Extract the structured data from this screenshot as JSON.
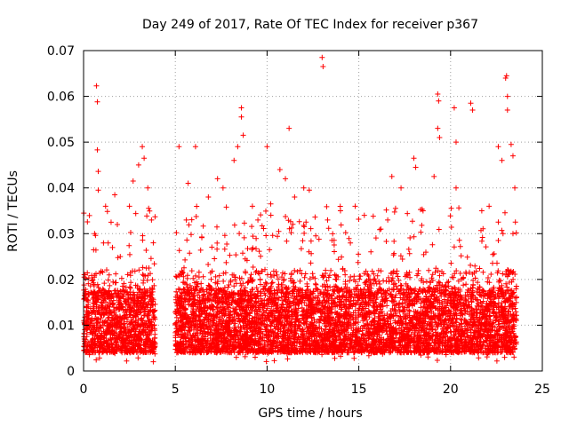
{
  "chart_data": {
    "type": "scatter",
    "title": "Day 249 of 2017, Rate Of TEC Index for receiver p367",
    "xlabel": "GPS time / hours",
    "ylabel": "ROTI / TECUs",
    "xlim": [
      0,
      25
    ],
    "ylim": [
      0,
      0.07
    ],
    "xticks": [
      0,
      5,
      10,
      15,
      20,
      25
    ],
    "yticks": [
      0,
      0.01,
      0.02,
      0.03,
      0.04,
      0.05,
      0.06,
      0.07
    ],
    "ytick_labels": [
      "0",
      "0.01",
      "0.02",
      "0.03",
      "0.04",
      "0.05",
      "0.06",
      "0.07"
    ],
    "xtick_labels": [
      "0",
      "5",
      "10",
      "15",
      "20",
      "25"
    ],
    "grid": true,
    "marker": "plus",
    "color": "#ff0000",
    "coverage": {
      "segments": [
        [
          0,
          3.9
        ],
        [
          5.0,
          23.6
        ]
      ],
      "typical_range": [
        0.004,
        0.018
      ]
    },
    "points": [
      [
        0.7,
        0.0623
      ],
      [
        0.75,
        0.0588
      ],
      [
        0.75,
        0.0483
      ],
      [
        0.8,
        0.0436
      ],
      [
        0.8,
        0.0395
      ],
      [
        0.6,
        0.03
      ],
      [
        1.2,
        0.036
      ],
      [
        1.5,
        0.0325
      ],
      [
        1.7,
        0.0385
      ],
      [
        2.0,
        0.025
      ],
      [
        2.5,
        0.036
      ],
      [
        2.7,
        0.0415
      ],
      [
        3.0,
        0.045
      ],
      [
        3.2,
        0.049
      ],
      [
        3.3,
        0.0465
      ],
      [
        3.5,
        0.04
      ],
      [
        3.7,
        0.033
      ],
      [
        3.8,
        0.028
      ],
      [
        3.8,
        0.002
      ],
      [
        5.2,
        0.049
      ],
      [
        5.6,
        0.033
      ],
      [
        5.7,
        0.041
      ],
      [
        6.1,
        0.049
      ],
      [
        6.8,
        0.038
      ],
      [
        7.3,
        0.042
      ],
      [
        7.6,
        0.04
      ],
      [
        8.2,
        0.046
      ],
      [
        8.4,
        0.049
      ],
      [
        8.6,
        0.0575
      ],
      [
        8.6,
        0.0555
      ],
      [
        8.7,
        0.0515
      ],
      [
        9.2,
        0.036
      ],
      [
        9.5,
        0.033
      ],
      [
        10.0,
        0.049
      ],
      [
        10.2,
        0.0365
      ],
      [
        10.7,
        0.044
      ],
      [
        11.0,
        0.042
      ],
      [
        11.2,
        0.053
      ],
      [
        11.5,
        0.038
      ],
      [
        12.0,
        0.04
      ],
      [
        12.3,
        0.0395
      ],
      [
        13.0,
        0.0685
      ],
      [
        13.05,
        0.0665
      ],
      [
        13.3,
        0.033
      ],
      [
        14.0,
        0.035
      ],
      [
        14.8,
        0.036
      ],
      [
        15.3,
        0.034
      ],
      [
        16.2,
        0.031
      ],
      [
        16.8,
        0.0425
      ],
      [
        17.3,
        0.04
      ],
      [
        18.0,
        0.0465
      ],
      [
        18.1,
        0.0445
      ],
      [
        18.5,
        0.035
      ],
      [
        19.1,
        0.0425
      ],
      [
        19.3,
        0.0605
      ],
      [
        19.35,
        0.059
      ],
      [
        19.3,
        0.053
      ],
      [
        19.4,
        0.051
      ],
      [
        20.2,
        0.0575
      ],
      [
        20.3,
        0.05
      ],
      [
        20.3,
        0.04
      ],
      [
        21.1,
        0.0585
      ],
      [
        21.2,
        0.057
      ],
      [
        21.7,
        0.035
      ],
      [
        22.1,
        0.036
      ],
      [
        22.6,
        0.049
      ],
      [
        22.8,
        0.046
      ],
      [
        23.0,
        0.064
      ],
      [
        23.05,
        0.0645
      ],
      [
        23.1,
        0.06
      ],
      [
        23.1,
        0.057
      ],
      [
        23.3,
        0.0495
      ],
      [
        23.4,
        0.047
      ],
      [
        23.5,
        0.04
      ],
      [
        23.4,
        0.03
      ]
    ]
  }
}
